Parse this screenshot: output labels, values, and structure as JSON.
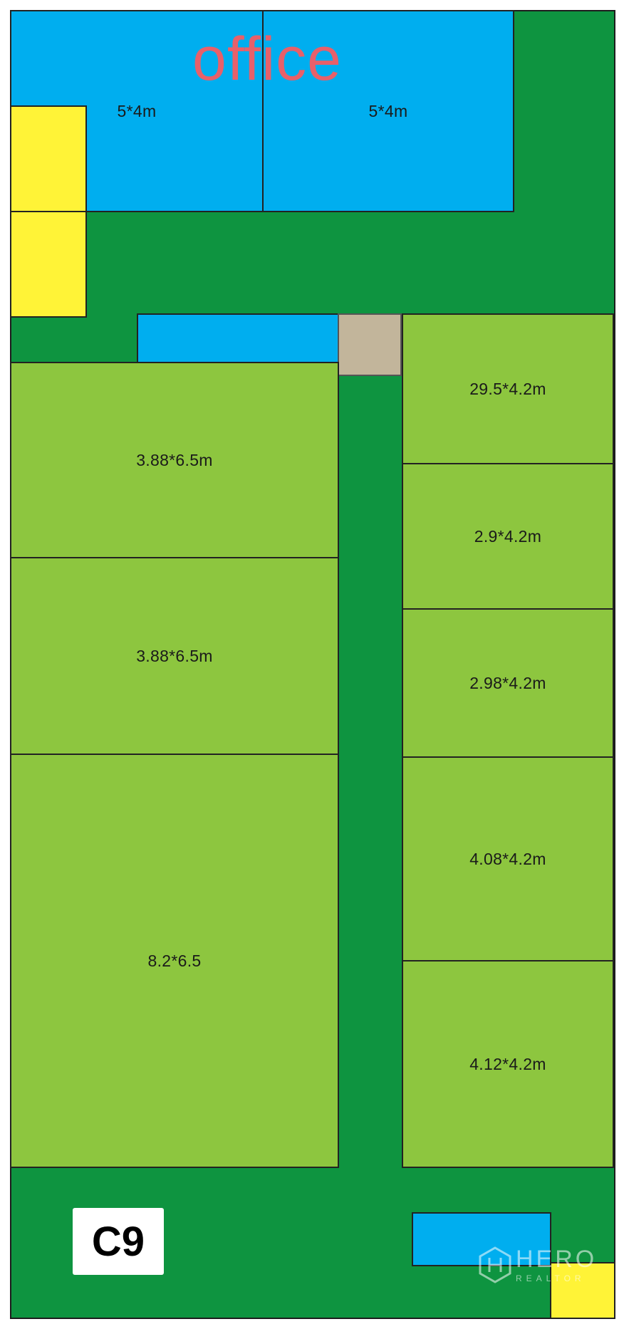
{
  "plan": {
    "office_label": "office",
    "plot_label": "C9",
    "rooms": {
      "office_left": "5*4m",
      "office_right": "5*4m",
      "left_1": "3.88*6.5m",
      "left_2": "3.88*6.5m",
      "left_3": "8.2*6.5",
      "right_1": "29.5*4.2m",
      "right_2": "2.9*4.2m",
      "right_3": "2.98*4.2m",
      "right_4": "4.08*4.2m",
      "right_5": "4.12*4.2m"
    }
  },
  "watermark": {
    "name": "HERO",
    "subtitle": "REALTOR"
  },
  "colors": {
    "ground": "#0e9440",
    "office": "#00aeef",
    "plot": "#8dc63f",
    "yellow_zone": "#fff337",
    "stair": "#c2b59b",
    "office_label": "#e8606a"
  }
}
